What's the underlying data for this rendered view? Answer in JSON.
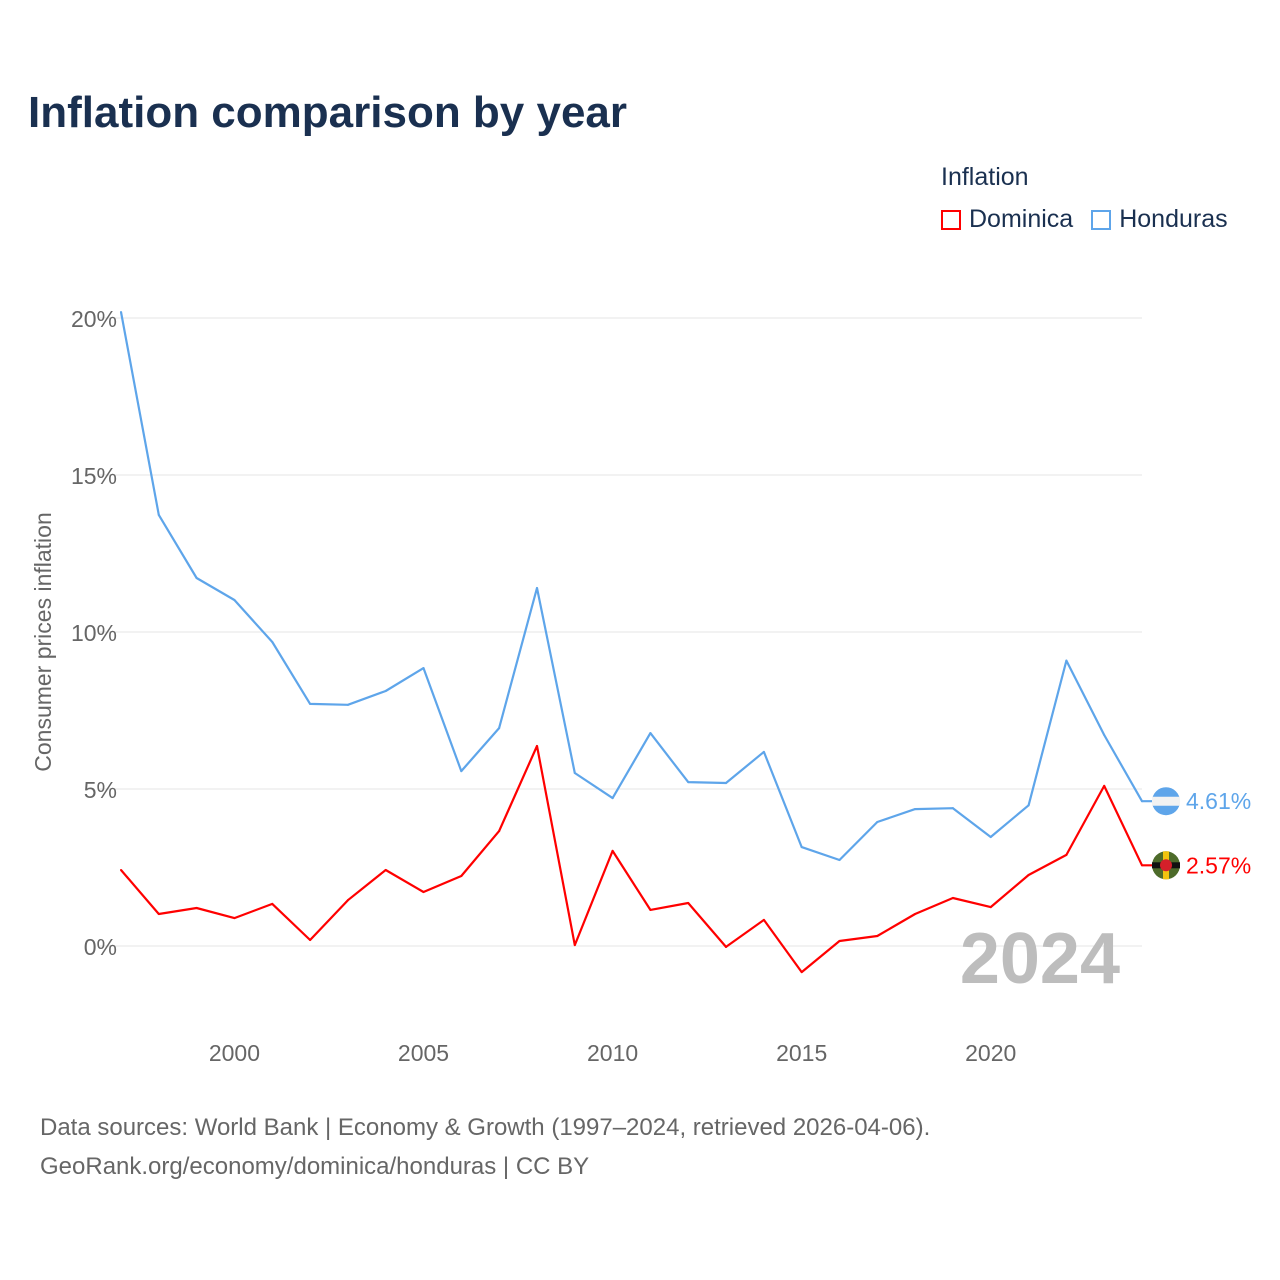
{
  "title": "Inflation comparison by year",
  "legend": {
    "title": "Inflation",
    "items": [
      {
        "label": "Dominica",
        "color": "#ff0000"
      },
      {
        "label": "Honduras",
        "color": "#5ea5ea"
      }
    ]
  },
  "footer": {
    "line1": "Data sources: World Bank | Economy & Growth (1997–2024, retrieved 2026-04-06).",
    "line2": "GeoRank.org/economy/dominica/honduras | CC BY"
  },
  "chart_data": {
    "type": "line",
    "title": "Inflation comparison by year",
    "xlabel": "",
    "ylabel": "Consumer prices inflation",
    "x": [
      1997,
      1998,
      1999,
      2000,
      2001,
      2002,
      2003,
      2004,
      2005,
      2006,
      2007,
      2008,
      2009,
      2010,
      2011,
      2012,
      2013,
      2014,
      2015,
      2016,
      2017,
      2018,
      2019,
      2020,
      2021,
      2022,
      2023,
      2024
    ],
    "xlim": [
      1997,
      2024
    ],
    "ylim": [
      -2.5,
      20.5
    ],
    "xticks": [
      2000,
      2005,
      2010,
      2015,
      2020
    ],
    "xtick_labels": [
      "2000",
      "2005",
      "2010",
      "2015",
      "2020"
    ],
    "yticks": [
      0,
      5,
      10,
      15,
      20
    ],
    "ytick_labels": [
      "0%",
      "5%",
      "10%",
      "15%",
      "20%"
    ],
    "grid": true,
    "legend_position": "top-right",
    "watermark_year": "2024",
    "series": [
      {
        "name": "Dominica",
        "color": "#ff0000",
        "end_label": "2.57%",
        "values": [
          2.42,
          1.02,
          1.21,
          0.89,
          1.34,
          0.19,
          1.46,
          2.42,
          1.72,
          2.23,
          3.66,
          6.37,
          0.03,
          3.03,
          1.15,
          1.37,
          -0.03,
          0.83,
          -0.83,
          0.16,
          0.32,
          1.02,
          1.53,
          1.24,
          2.26,
          2.9,
          5.1,
          2.57
        ]
      },
      {
        "name": "Honduras",
        "color": "#5ea5ea",
        "end_label": "4.61%",
        "values": [
          20.19,
          13.73,
          11.72,
          11.02,
          9.68,
          7.71,
          7.68,
          8.12,
          8.85,
          5.57,
          6.94,
          11.4,
          5.51,
          4.71,
          6.78,
          5.22,
          5.19,
          6.18,
          3.15,
          2.74,
          3.95,
          4.36,
          4.39,
          3.47,
          4.48,
          9.09,
          6.72,
          4.61
        ]
      }
    ]
  }
}
